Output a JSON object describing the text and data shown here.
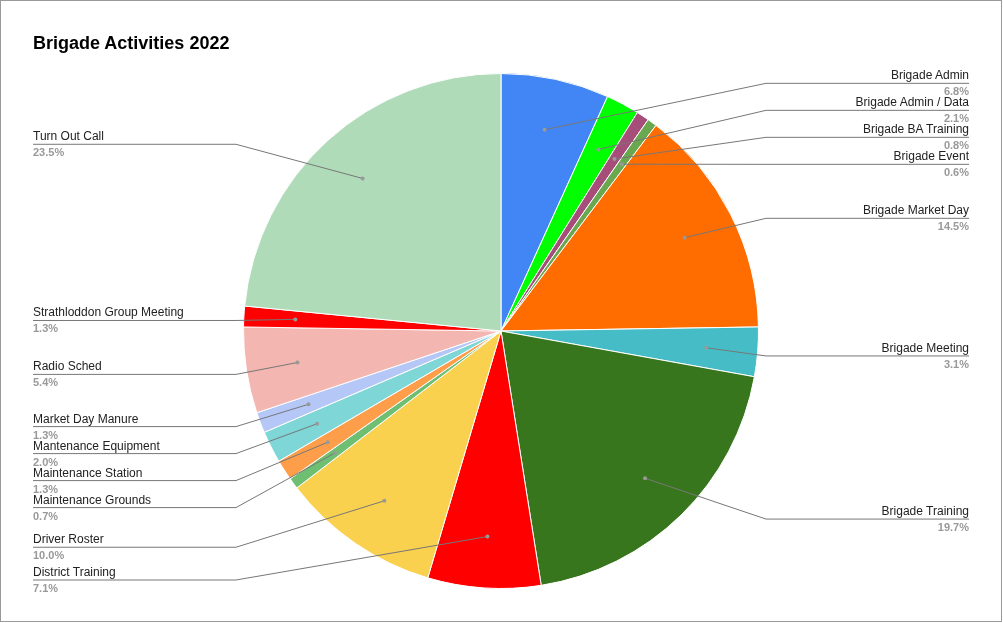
{
  "chart_data": {
    "type": "pie",
    "title": "Brigade Activities 2022",
    "categories": [
      "Brigade Admin",
      "Brigade Admin / Data",
      "Brigade BA Training",
      "Brigade Event",
      "Brigade Market Day",
      "Brigade Meeting",
      "Brigade Training",
      "District Training",
      "Driver Roster",
      "Maintenance Grounds",
      "Maintenance Station",
      "Mantenance Equipment",
      "Market Day Manure",
      "Radio Sched",
      "Strathloddon Group Meeting",
      "Turn Out Call"
    ],
    "values": [
      6.8,
      2.1,
      0.8,
      0.6,
      14.5,
      3.1,
      19.7,
      7.1,
      10.0,
      0.7,
      1.3,
      2.0,
      1.3,
      5.4,
      1.3,
      23.5
    ],
    "value_labels": [
      "6.8%",
      "2.1%",
      "0.8%",
      "0.6%",
      "14.5%",
      "3.1%",
      "19.7%",
      "7.1%",
      "10.0%",
      "0.7%",
      "1.3%",
      "2.0%",
      "1.3%",
      "5.4%",
      "1.3%",
      "23.5%"
    ],
    "colors": [
      "#4285f4",
      "#00ff00",
      "#a64d79",
      "#6aa84f",
      "#ff6d01",
      "#46bdc6",
      "#38761d",
      "#ff0000",
      "#f9d14f",
      "#6fbf73",
      "#ff9e4a",
      "#7ed6d6",
      "#b4c7f7",
      "#f4b6b0",
      "#ff0000",
      "#b0dbb8"
    ],
    "legend": false
  }
}
